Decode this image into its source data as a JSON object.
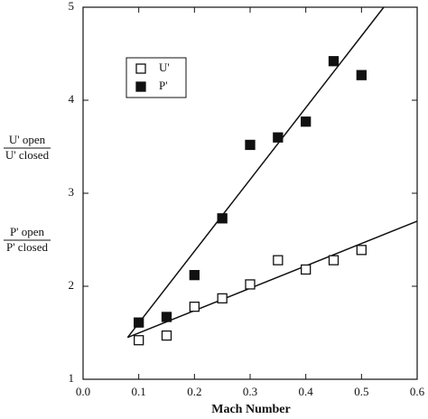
{
  "chart_data": {
    "type": "scatter",
    "xlabel": "Mach Number",
    "ylabel": {
      "u_num": "U' open",
      "u_den": "U' closed",
      "p_num": "P' open",
      "p_den": "P' closed"
    },
    "xlim": [
      0.0,
      0.6
    ],
    "xticks": [
      {
        "value": 0.0,
        "label": "0.0"
      },
      0.1,
      0.2,
      0.3,
      0.4,
      0.5,
      0.6
    ],
    "ylim": [
      1,
      5
    ],
    "yticks": [
      1,
      2,
      3,
      4,
      5
    ],
    "legend": "upper left",
    "series": [
      {
        "name": "U'",
        "color": "#111111",
        "filled": false,
        "x": [
          0.1,
          0.15,
          0.2,
          0.25,
          0.3,
          0.35,
          0.4,
          0.45,
          0.5
        ],
        "values": [
          1.42,
          1.47,
          1.78,
          1.87,
          2.02,
          2.28,
          2.18,
          2.28,
          2.39
        ],
        "fit": {
          "x": [
            0.08,
            0.6
          ],
          "values": [
            1.45,
            2.7
          ]
        }
      },
      {
        "name": "P'",
        "color": "#111111",
        "filled": true,
        "x": [
          0.1,
          0.15,
          0.2,
          0.25,
          0.3,
          0.35,
          0.4,
          0.45,
          0.5
        ],
        "values": [
          1.61,
          1.67,
          2.12,
          2.73,
          3.52,
          3.6,
          3.77,
          4.42,
          4.27
        ],
        "fit": {
          "x": [
            0.08,
            0.54
          ],
          "values": [
            1.45,
            5
          ]
        }
      }
    ]
  }
}
